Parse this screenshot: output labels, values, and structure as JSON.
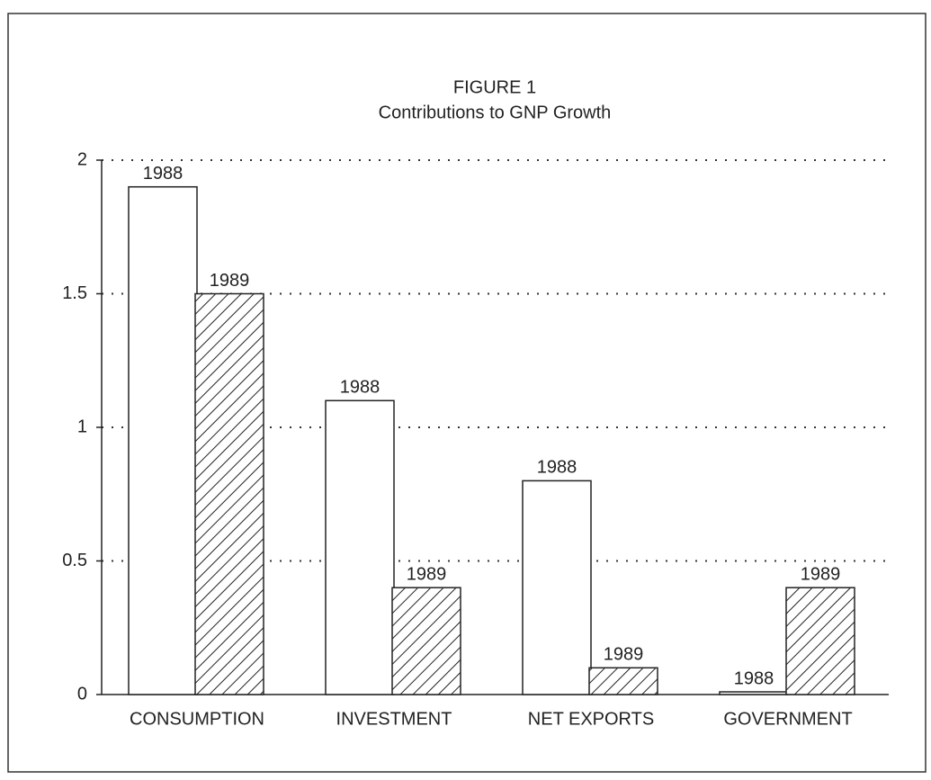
{
  "chart_data": {
    "type": "bar",
    "title": "FIGURE 1",
    "subtitle": "Contributions to GNP Growth",
    "categories": [
      "CONSUMPTION",
      "INVESTMENT",
      "NET EXPORTS",
      "GOVERNMENT"
    ],
    "series": [
      {
        "name": "1988",
        "color": "#ffffff",
        "values": [
          1.9,
          1.1,
          0.8,
          0.01
        ]
      },
      {
        "name": "1989",
        "color": "#222222",
        "pattern": "hatch",
        "values": [
          1.5,
          0.4,
          0.1,
          0.4
        ]
      }
    ],
    "ylim": [
      0,
      2
    ],
    "yticks": [
      0,
      0.5,
      1,
      1.5,
      2
    ],
    "grid": true
  }
}
